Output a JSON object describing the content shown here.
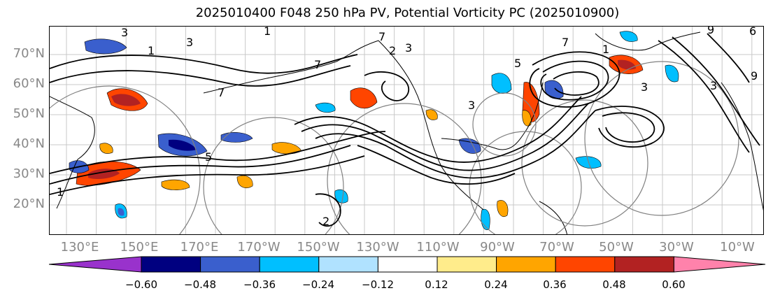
{
  "title": "2025010400 F048 250 hPa PV, Potential Vorticity PC (2025010900)",
  "lat_labels": [
    "70°N",
    "60°N",
    "50°N",
    "40°N",
    "30°N",
    "20°N"
  ],
  "lon_labels": [
    "130°E",
    "150°E",
    "170°E",
    "170°W",
    "150°W",
    "130°W",
    "110°W",
    "90°W",
    "70°W",
    "50°W",
    "30°W",
    "10°W"
  ],
  "colorbar": {
    "ticks": [
      "−0.60",
      "−0.48",
      "−0.36",
      "−0.24",
      "−0.12",
      "0.12",
      "0.24",
      "0.36",
      "0.48",
      "0.60"
    ],
    "colors": [
      "#9932CC",
      "#000080",
      "#3A5FCD",
      "#00BFFF",
      "#B0E2FF",
      "#FFFFFF",
      "#FFEC8B",
      "#FFA500",
      "#FF4500",
      "#B22222",
      "#FF82AB"
    ]
  },
  "contour_labels": [
    "1",
    "1",
    "3",
    "3",
    "7",
    "7",
    "7",
    "5",
    "3",
    "9",
    "6",
    "9",
    "1",
    "3",
    "7",
    "5",
    "2",
    "3",
    "3",
    "1",
    "2"
  ],
  "lon_grid_step_deg": 10,
  "lat_grid_step_deg": 10
}
